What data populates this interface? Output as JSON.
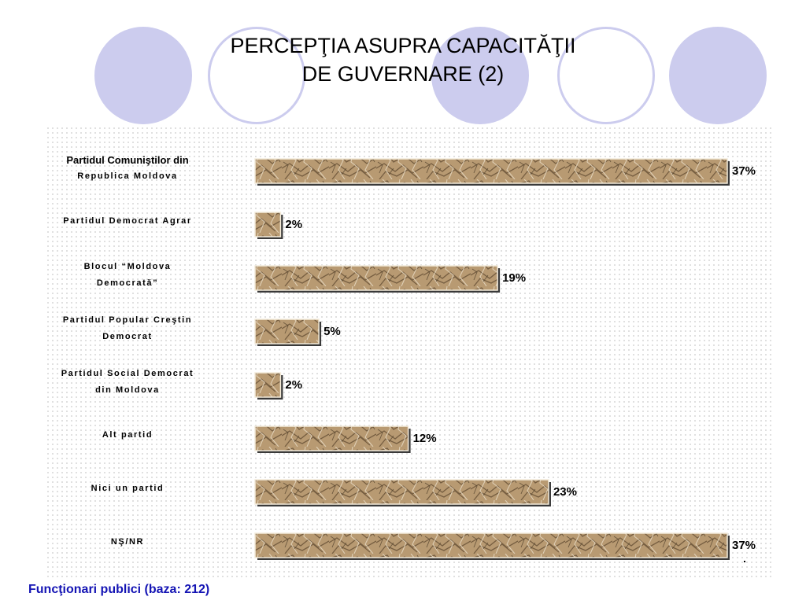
{
  "slide": {
    "title_line1": "PERCEPŢIA ASUPRA CAPACITĂŢII",
    "title_line2": "DE GUVERNARE (2)",
    "footer": "Funcţionari publici (baza: 212)"
  },
  "colors": {
    "circle": "#ccccee",
    "bar_fill": "#b89a72",
    "bar_shadow": "#3a3a3a",
    "footer_text": "#1414b4"
  },
  "chart_data": {
    "type": "bar",
    "orientation": "horizontal",
    "categories": [
      [
        "Partidul Comuniştilor din",
        "Republica Moldova"
      ],
      [
        "Partidul Democrat Agrar"
      ],
      [
        "Blocul “Moldova",
        "Democrată”"
      ],
      [
        "Partidul Popular Creştin",
        "Democrat"
      ],
      [
        "Partidul Social Democrat",
        "din Moldova"
      ],
      [
        "Alt partid"
      ],
      [
        "Nici un partid"
      ],
      [
        "NŞ/NR"
      ]
    ],
    "values": [
      37,
      2,
      19,
      5,
      2,
      12,
      23,
      37
    ],
    "value_labels": [
      "37%",
      "2%",
      "19%",
      "5%",
      "2%",
      "12%",
      "23%",
      "37%"
    ],
    "xlim": [
      0,
      37
    ],
    "grid": false,
    "legend": "none"
  }
}
